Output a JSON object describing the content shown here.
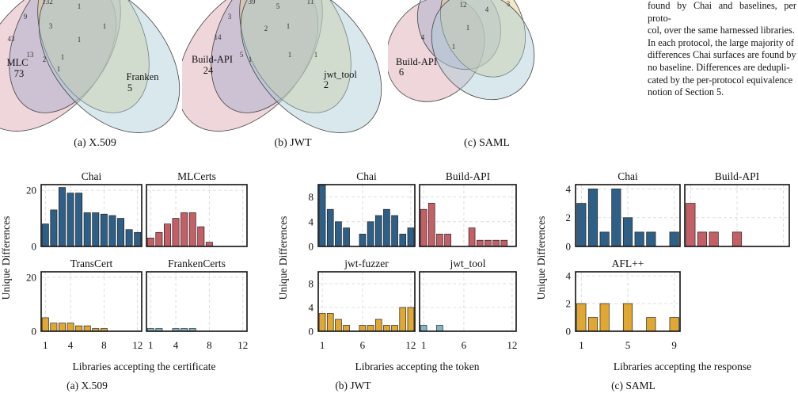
{
  "venn": {
    "x509": {
      "caption": "(a) X.509",
      "set_labels": [
        {
          "name": "MLC",
          "count": "73"
        },
        {
          "name": "Franken",
          "count": "5"
        }
      ],
      "region_numbers": [
        "132",
        "1",
        "9",
        "3",
        "1",
        "43",
        "1",
        "13",
        "2",
        "1",
        "1"
      ]
    },
    "jwt": {
      "caption": "(b) JWT",
      "set_labels": [
        {
          "name": "Build-API",
          "count": "24"
        },
        {
          "name": "jwt_tool",
          "count": "2"
        }
      ],
      "region_numbers": [
        "39",
        "5",
        "11",
        "3",
        "2",
        "1",
        "14",
        "5",
        "1",
        "1",
        "1"
      ]
    },
    "saml": {
      "caption": "(c) SAML",
      "set_labels": [
        {
          "name": "Build-API",
          "count": "6"
        }
      ],
      "region_numbers": [
        "12",
        "4",
        "3",
        "4",
        "1",
        "1"
      ]
    }
  },
  "side_text": [
    "found by Chai and baselines, per proto-",
    "col, over the same harnessed libraries.",
    "In each protocol, the large majority of",
    "differences Chai surfaces are found by",
    "no baseline. Differences are dedupli-",
    "cated by the per-protocol equivalence",
    "notion of Section 5."
  ],
  "chart_data": [
    {
      "type": "bar",
      "caption": "(a) X.509",
      "ylabel": "Unique Differences",
      "xlabel": "Libraries accepting the certificate",
      "x_ticks": [
        "1",
        "4",
        "8",
        "12"
      ],
      "y_ticks": [
        "0",
        "20"
      ],
      "ylim": [
        0,
        22
      ],
      "xlim": [
        0.5,
        12.5
      ],
      "grid": true,
      "colors": {
        "Chai": "#2e5f86",
        "MLCerts": "#c45f66",
        "TransCert": "#e0a832",
        "FrankenCerts": "#7fb7c6"
      },
      "panels": [
        {
          "name": "Chai",
          "x": [
            1,
            2,
            3,
            4,
            5,
            6,
            7,
            8,
            9,
            10,
            11,
            12
          ],
          "values": [
            8,
            13,
            21,
            19,
            19,
            12,
            12,
            11.5,
            11,
            10,
            6,
            5
          ]
        },
        {
          "name": "MLCerts",
          "x": [
            1,
            2,
            3,
            4,
            5,
            6,
            7,
            8
          ],
          "values": [
            3,
            5,
            8,
            10,
            12,
            12,
            7,
            1.5
          ]
        },
        {
          "name": "TransCert",
          "x": [
            1,
            2,
            3,
            4,
            5,
            6,
            7,
            8
          ],
          "values": [
            5,
            3,
            3,
            3,
            2,
            2,
            1,
            1
          ]
        },
        {
          "name": "FrankenCerts",
          "x": [
            1,
            2,
            4,
            5,
            6
          ],
          "values": [
            1,
            1,
            1,
            1,
            1
          ]
        }
      ]
    },
    {
      "type": "bar",
      "caption": "(b) JWT",
      "ylabel": "Unique Differences",
      "xlabel": "Libraries accepting the token",
      "x_ticks": [
        "1",
        "6",
        "12"
      ],
      "y_ticks": [
        "0",
        "4",
        "8"
      ],
      "ylim": [
        0,
        10
      ],
      "xlim": [
        0.5,
        12.5
      ],
      "grid": true,
      "colors": {
        "Chai": "#2e5f86",
        "Build-API": "#c45f66",
        "jwt-fuzzer": "#e0a832",
        "jwt_tool": "#7fb7c6"
      },
      "panels": [
        {
          "name": "Chai",
          "x": [
            1,
            2,
            3,
            4,
            6,
            7,
            8,
            9,
            10,
            11,
            12
          ],
          "values": [
            10,
            6,
            4,
            3,
            2,
            4,
            5,
            6,
            5,
            2,
            3
          ]
        },
        {
          "name": "Build-API",
          "x": [
            1,
            2,
            3,
            4,
            7,
            8,
            9,
            10,
            11
          ],
          "values": [
            6,
            7,
            2,
            2,
            3,
            1,
            1,
            1,
            1
          ]
        },
        {
          "name": "jwt-fuzzer",
          "x": [
            1,
            2,
            3,
            4,
            6,
            7,
            8,
            9,
            10,
            11,
            12
          ],
          "values": [
            3,
            3,
            2,
            1,
            1,
            1,
            2,
            1,
            1,
            4,
            4
          ]
        },
        {
          "name": "jwt_tool",
          "x": [
            1,
            3
          ],
          "values": [
            1,
            1
          ]
        }
      ]
    },
    {
      "type": "bar",
      "caption": "(c) SAML",
      "ylabel": "Unique Differences",
      "xlabel": "Libraries accepting the response",
      "x_ticks": [
        "1",
        "5",
        "9"
      ],
      "y_ticks": [
        "0",
        "2",
        "4"
      ],
      "ylim": [
        0,
        4.3
      ],
      "xlim": [
        0.5,
        9.5
      ],
      "grid": true,
      "colors": {
        "Chai": "#2e5f86",
        "Build-API": "#c45f66",
        "AFL++": "#e0a832"
      },
      "panels": [
        {
          "name": "Chai",
          "x": [
            1,
            2,
            3,
            4,
            5,
            6,
            7,
            9
          ],
          "values": [
            3,
            4,
            1,
            4,
            2,
            1,
            1,
            1
          ]
        },
        {
          "name": "Build-API",
          "x": [
            1,
            2,
            3,
            5
          ],
          "values": [
            3,
            1,
            1,
            1
          ]
        },
        {
          "name": "AFL++",
          "x": [
            1,
            2,
            3,
            5,
            7,
            9
          ],
          "values": [
            2,
            1,
            2,
            2,
            1,
            1
          ]
        }
      ]
    }
  ]
}
